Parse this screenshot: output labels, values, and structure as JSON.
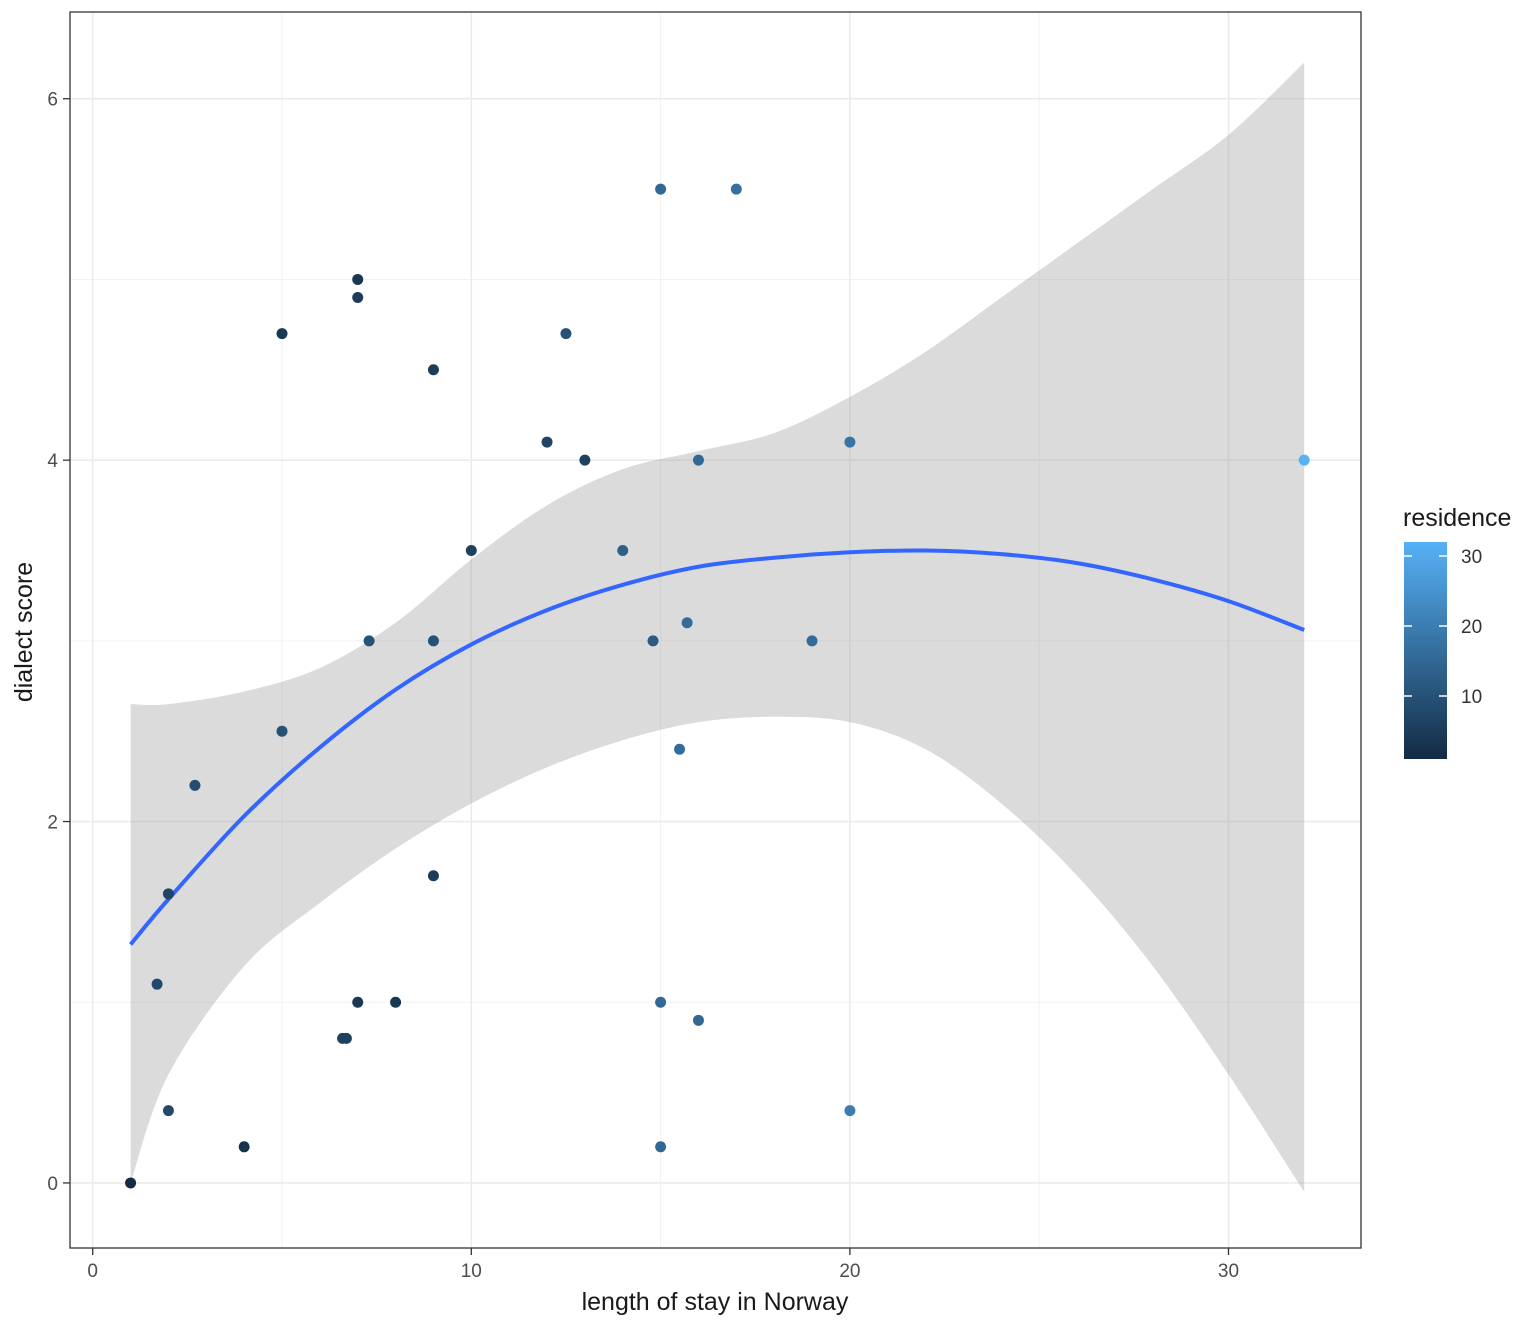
{
  "chart_data": {
    "type": "scatter",
    "title": "",
    "xlabel": "length of stay in Norway",
    "ylabel": "dialect score",
    "xlim": [
      -0.6,
      33.5
    ],
    "ylim": [
      -0.36,
      6.48
    ],
    "x_ticks": [
      0,
      10,
      20,
      30
    ],
    "y_ticks": [
      0,
      2,
      4,
      6
    ],
    "x_tick_labels": [
      "0",
      "10",
      "20",
      "30"
    ],
    "y_tick_labels": [
      "0",
      "2",
      "4",
      "6"
    ],
    "grid": true,
    "legend": {
      "title": "residence",
      "position": "right",
      "scale_min": 1,
      "scale_max": 32,
      "ticks": [
        10,
        20,
        30
      ],
      "tick_labels": [
        "10",
        "20",
        "30"
      ],
      "color_low": "#132B43",
      "color_high": "#56B1F7"
    },
    "points": [
      {
        "x": 1,
        "y": 0,
        "residence": 1
      },
      {
        "x": 1.7,
        "y": 1.1,
        "residence": 8
      },
      {
        "x": 2,
        "y": 1.6,
        "residence": 7
      },
      {
        "x": 2,
        "y": 0.4,
        "residence": 8
      },
      {
        "x": 2.7,
        "y": 2.2,
        "residence": 9
      },
      {
        "x": 4,
        "y": 0.2,
        "residence": 3
      },
      {
        "x": 5,
        "y": 4.7,
        "residence": 4
      },
      {
        "x": 5,
        "y": 2.5,
        "residence": 10
      },
      {
        "x": 6.6,
        "y": 0.8,
        "residence": 6
      },
      {
        "x": 6.7,
        "y": 0.8,
        "residence": 6
      },
      {
        "x": 7,
        "y": 5.0,
        "residence": 4
      },
      {
        "x": 7,
        "y": 4.9,
        "residence": 5
      },
      {
        "x": 7,
        "y": 1.0,
        "residence": 4
      },
      {
        "x": 7.3,
        "y": 3.0,
        "residence": 10
      },
      {
        "x": 8,
        "y": 1.0,
        "residence": 4
      },
      {
        "x": 9,
        "y": 4.5,
        "residence": 5
      },
      {
        "x": 9,
        "y": 3.0,
        "residence": 10
      },
      {
        "x": 9,
        "y": 1.7,
        "residence": 5
      },
      {
        "x": 10,
        "y": 3.5,
        "residence": 6
      },
      {
        "x": 12,
        "y": 4.1,
        "residence": 7
      },
      {
        "x": 12.5,
        "y": 4.7,
        "residence": 10
      },
      {
        "x": 13,
        "y": 4.0,
        "residence": 6
      },
      {
        "x": 14,
        "y": 3.5,
        "residence": 13
      },
      {
        "x": 14.8,
        "y": 3.0,
        "residence": 12
      },
      {
        "x": 15,
        "y": 5.5,
        "residence": 15
      },
      {
        "x": 15,
        "y": 1.0,
        "residence": 15
      },
      {
        "x": 15,
        "y": 0.2,
        "residence": 15
      },
      {
        "x": 15.5,
        "y": 2.4,
        "residence": 16
      },
      {
        "x": 15.7,
        "y": 3.1,
        "residence": 16
      },
      {
        "x": 16,
        "y": 4.0,
        "residence": 15
      },
      {
        "x": 16,
        "y": 0.9,
        "residence": 15
      },
      {
        "x": 17,
        "y": 5.5,
        "residence": 17
      },
      {
        "x": 19,
        "y": 3.0,
        "residence": 16
      },
      {
        "x": 20,
        "y": 4.1,
        "residence": 18
      },
      {
        "x": 20,
        "y": 0.4,
        "residence": 20
      },
      {
        "x": 32,
        "y": 4.0,
        "residence": 32
      }
    ],
    "fit_line": {
      "color": "#3366FF",
      "x": [
        1,
        2,
        4,
        6,
        8,
        10,
        12,
        14,
        16,
        18,
        20,
        22,
        24,
        26,
        28,
        30,
        32
      ],
      "y": [
        1.32,
        1.57,
        2.03,
        2.41,
        2.73,
        2.98,
        3.17,
        3.31,
        3.41,
        3.46,
        3.49,
        3.5,
        3.48,
        3.43,
        3.34,
        3.22,
        3.06
      ]
    },
    "confidence_band": {
      "color": "#999999",
      "opacity": 0.35,
      "x": [
        1,
        2,
        4,
        6,
        8,
        10,
        12,
        14,
        16,
        18,
        20,
        22,
        24,
        26,
        28,
        30,
        32
      ],
      "upper": [
        2.65,
        2.65,
        2.72,
        2.85,
        3.1,
        3.45,
        3.75,
        3.95,
        4.05,
        4.15,
        4.35,
        4.6,
        4.9,
        5.2,
        5.5,
        5.8,
        6.2
      ],
      "lower": [
        0.0,
        0.6,
        1.2,
        1.55,
        1.85,
        2.1,
        2.3,
        2.45,
        2.55,
        2.58,
        2.55,
        2.4,
        2.1,
        1.7,
        1.2,
        0.6,
        -0.05
      ]
    }
  }
}
